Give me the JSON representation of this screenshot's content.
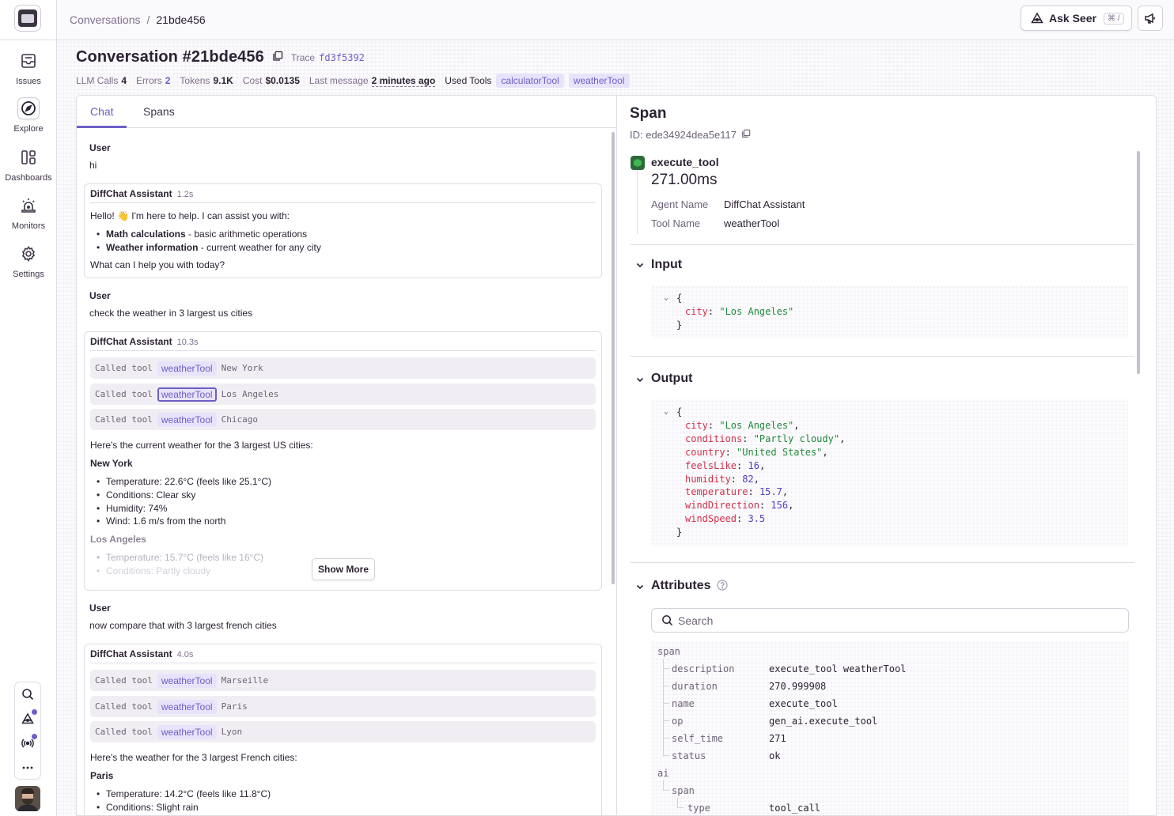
{
  "sidebar": {
    "items": [
      {
        "label": "Issues",
        "icon": "inbox-icon"
      },
      {
        "label": "Explore",
        "icon": "compass-icon"
      },
      {
        "label": "Dashboards",
        "icon": "dashboard-icon"
      },
      {
        "label": "Monitors",
        "icon": "siren-icon"
      },
      {
        "label": "Settings",
        "icon": "gear-icon"
      }
    ]
  },
  "topbar": {
    "breadcrumb": [
      "Conversations",
      "21bde456"
    ],
    "ask_seer": "Ask Seer",
    "ask_seer_shortcut": "⌘ /"
  },
  "header": {
    "title": "Conversation #21bde456",
    "trace_label": "Trace",
    "trace_id": "fd3f5392",
    "meta": {
      "llm_calls_label": "LLM Calls",
      "llm_calls": "4",
      "errors_label": "Errors",
      "errors": "2",
      "tokens_label": "Tokens",
      "tokens": "9.1K",
      "cost_label": "Cost",
      "cost": "$0.0135",
      "last_message_label": "Last message",
      "last_message": "2 minutes ago",
      "used_tools_label": "Used Tools",
      "tools": [
        "calculatorTool",
        "weatherTool"
      ]
    }
  },
  "tabs": [
    "Chat",
    "Spans"
  ],
  "chat": {
    "user_label": "User",
    "assistant_label": "DiffChat Assistant",
    "called_tool_label": "Called tool",
    "show_more": "Show More",
    "msg1_user": "hi",
    "msg1_time": "1.2s",
    "msg1_intro": "Hello! 👋 I'm here to help. I can assist you with:",
    "msg1_b1_bold": "Math calculations",
    "msg1_b1_rest": " - basic arithmetic operations",
    "msg1_b2_bold": "Weather information",
    "msg1_b2_rest": " - current weather for any city",
    "msg1_outro": "What can I help you with today?",
    "msg2_user": "check the weather in 3 largest us cities",
    "msg2_time": "10.3s",
    "msg2_calls": [
      {
        "tool": "weatherTool",
        "arg": "New York"
      },
      {
        "tool": "weatherTool",
        "arg": "Los Angeles"
      },
      {
        "tool": "weatherTool",
        "arg": "Chicago"
      }
    ],
    "msg2_intro": "Here's the current weather for the 3 largest US cities:",
    "msg2_city1": "New York",
    "msg2_city1_lines": [
      "Temperature: 22.6°C (feels like 25.1°C)",
      "Conditions: Clear sky",
      "Humidity: 74%",
      "Wind: 1.6 m/s from the north"
    ],
    "msg2_city2": "Los Angeles",
    "msg2_city2_lines": [
      "Temperature: 15.7°C (feels like 16°C)",
      "Conditions: Partly cloudy"
    ],
    "msg3_user": "now compare that with 3 largest french cities",
    "msg3_time": "4.0s",
    "msg3_calls": [
      {
        "tool": "weatherTool",
        "arg": "Marseille"
      },
      {
        "tool": "weatherTool",
        "arg": "Paris"
      },
      {
        "tool": "weatherTool",
        "arg": "Lyon"
      }
    ],
    "msg3_intro": "Here's the weather for the 3 largest French cities:",
    "msg3_city1": "Paris",
    "msg3_city1_lines": [
      "Temperature: 14.2°C (feels like 11.8°C)",
      "Conditions: Slight rain"
    ]
  },
  "span": {
    "title": "Span",
    "id_label": "ID: ede34924dea5e117",
    "op_name": "execute_tool",
    "duration": "271.00ms",
    "agent_name_label": "Agent Name",
    "agent_name": "DiffChat Assistant",
    "tool_name_label": "Tool Name",
    "tool_name": "weatherTool",
    "input_title": "Input",
    "output_title": "Output",
    "attributes_title": "Attributes",
    "search_placeholder": "Search",
    "input": {
      "city": "\"Los Angeles\""
    },
    "output": [
      {
        "key": "city",
        "value": "\"Los Angeles\"",
        "type": "s"
      },
      {
        "key": "conditions",
        "value": "\"Partly cloudy\"",
        "type": "s"
      },
      {
        "key": "country",
        "value": "\"United States\"",
        "type": "s"
      },
      {
        "key": "feelsLike",
        "value": "16",
        "type": "n"
      },
      {
        "key": "humidity",
        "value": "82",
        "type": "n"
      },
      {
        "key": "temperature",
        "value": "15.7",
        "type": "n"
      },
      {
        "key": "windDirection",
        "value": "156",
        "type": "n"
      },
      {
        "key": "windSpeed",
        "value": "3.5",
        "type": "n"
      }
    ],
    "attributes": {
      "group1": "span",
      "rows": [
        {
          "key": "description",
          "value": "execute_tool weatherTool"
        },
        {
          "key": "duration",
          "value": "270.999908"
        },
        {
          "key": "name",
          "value": "execute_tool"
        },
        {
          "key": "op",
          "value": "gen_ai.execute_tool"
        },
        {
          "key": "self_time",
          "value": "271"
        },
        {
          "key": "status",
          "value": "ok"
        }
      ],
      "group2": "ai",
      "group2_child": "span",
      "group2_leaf_key": "type",
      "group2_leaf_value": "tool_call"
    }
  }
}
